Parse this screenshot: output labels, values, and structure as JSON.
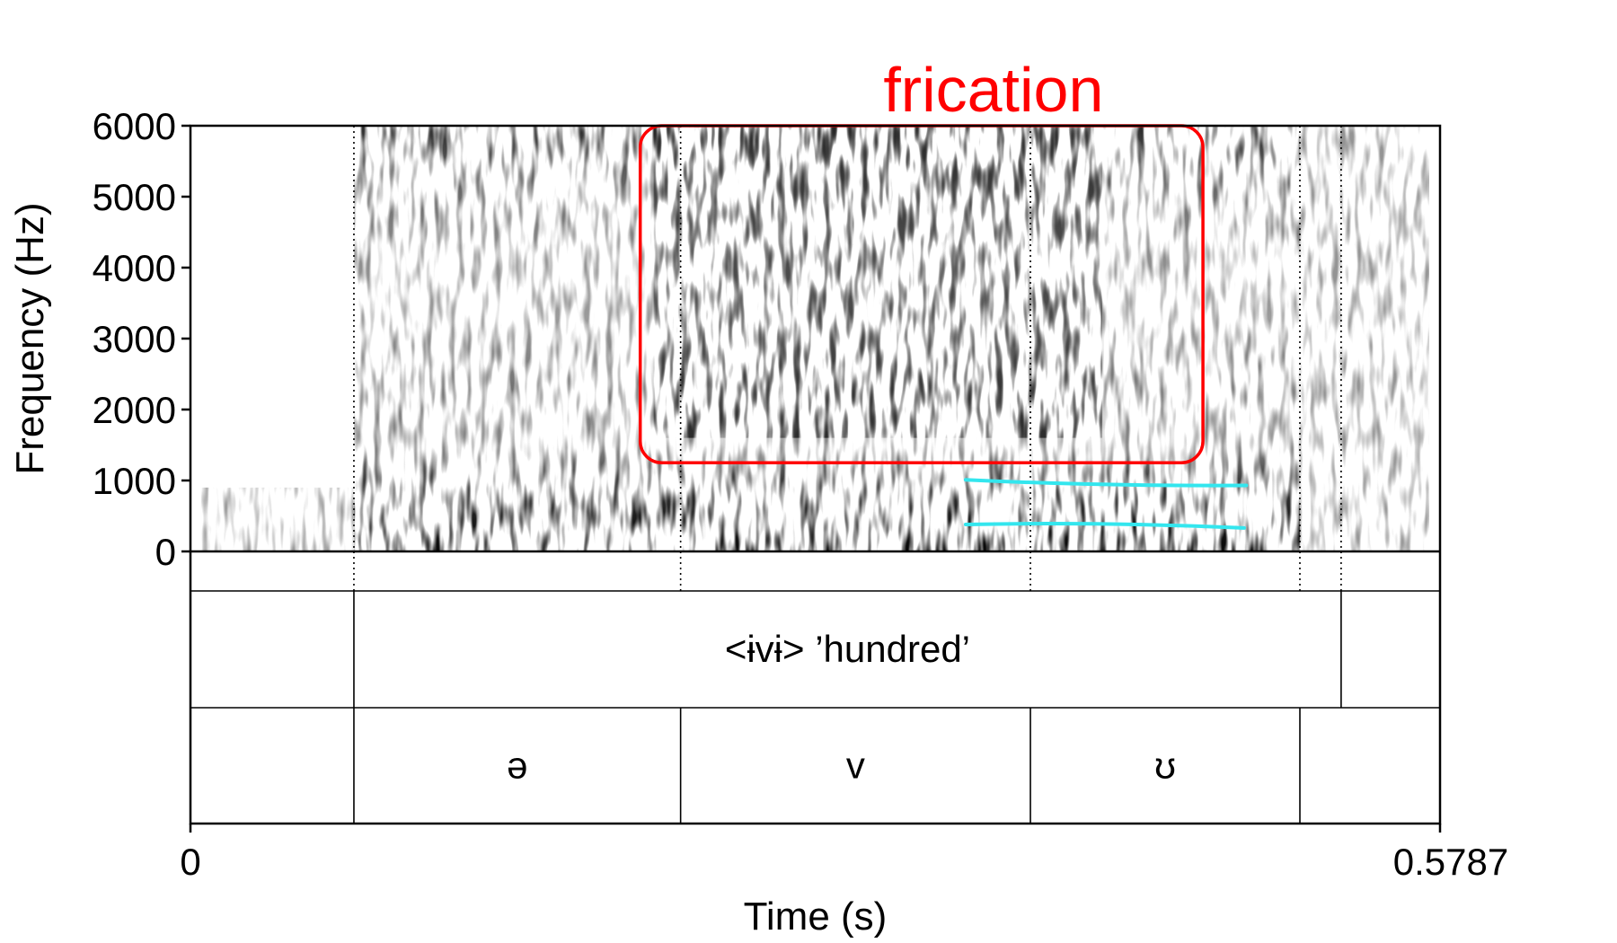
{
  "chart_data": {
    "type": "spectrogram",
    "xlabel": "Time (s)",
    "ylabel": "Frequency (Hz)",
    "xlim": [
      0,
      0.5787
    ],
    "ylim": [
      0,
      6000
    ],
    "x_tick_labels": [
      "0",
      "0.5787"
    ],
    "y_ticks": [
      0,
      1000,
      2000,
      3000,
      4000,
      5000,
      6000
    ],
    "y_tick_labels": [
      "0",
      "1000",
      "2000",
      "3000",
      "4000",
      "5000",
      "6000"
    ],
    "speech_interval": [
      0.0757,
      0.5138
    ],
    "boundaries": [
      0.0757,
      0.227,
      0.389,
      0.5138,
      0.5329
    ],
    "tiers": [
      {
        "name": "word",
        "intervals": [
          {
            "start": 0,
            "end": 0.0757,
            "label": ""
          },
          {
            "start": 0.0757,
            "end": 0.5329,
            "label": "<ɨvɨ> ’hundred’"
          },
          {
            "start": 0.5329,
            "end": 0.5787,
            "label": ""
          }
        ]
      },
      {
        "name": "segment",
        "intervals": [
          {
            "start": 0,
            "end": 0.0757,
            "label": ""
          },
          {
            "start": 0.0757,
            "end": 0.227,
            "label": "ə"
          },
          {
            "start": 0.227,
            "end": 0.389,
            "label": "v"
          },
          {
            "start": 0.389,
            "end": 0.5138,
            "label": "ʊ"
          },
          {
            "start": 0.5138,
            "end": 0.5787,
            "label": ""
          }
        ]
      }
    ],
    "annotation": {
      "label": "frication",
      "x_range": [
        0.2083,
        0.4689
      ],
      "y_range": [
        1250,
        6000
      ],
      "color": "#ff0000"
    },
    "formant_tracks": {
      "color": "#33e6ee",
      "tracks": [
        {
          "points": [
            [
              0.359,
              1010
            ],
            [
              0.42,
              920
            ],
            [
              0.489,
              930
            ]
          ]
        },
        {
          "points": [
            [
              0.359,
              380
            ],
            [
              0.42,
              420
            ],
            [
              0.488,
              330
            ]
          ]
        }
      ]
    },
    "colors": {
      "spectrogram": "grayscale",
      "boundary": "#000000"
    }
  }
}
